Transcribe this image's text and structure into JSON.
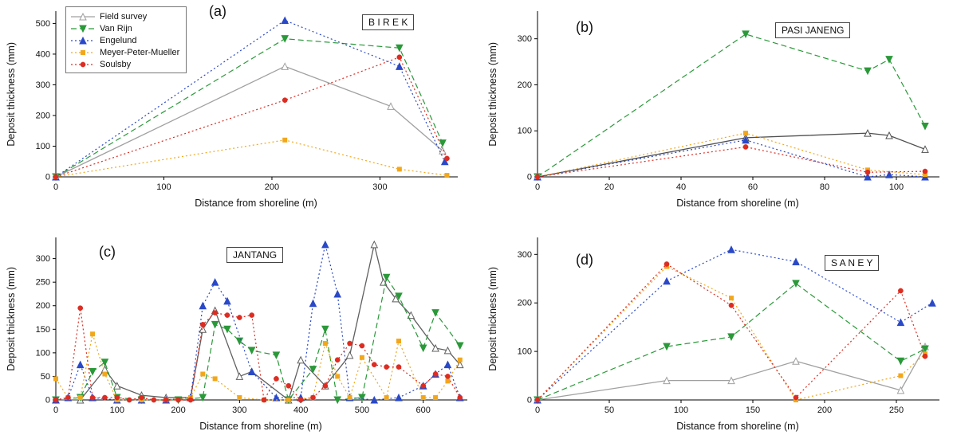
{
  "figure": {
    "xlabel": "Distance from shoreline (m)",
    "ylabel": "Deposit thickness (mm)"
  },
  "series_styles": [
    {
      "name": "Field survey",
      "color": "#a0a0a0",
      "line": "solid",
      "marker": "triangle-open"
    },
    {
      "name": "Van Rijn",
      "color": "#2a9939",
      "line": "dashed",
      "marker": "triangle-down"
    },
    {
      "name": "Engelund",
      "color": "#2a49c8",
      "line": "dotted",
      "marker": "triangle-up"
    },
    {
      "name": "Meyer-Peter-Mueller",
      "color": "#f2a71b",
      "line": "dotted",
      "marker": "square"
    },
    {
      "name": "Soulsby",
      "color": "#dd2c21",
      "line": "dotted",
      "marker": "circle"
    }
  ],
  "legend": {
    "panel": "a",
    "position": "top-left",
    "items": [
      "Field survey",
      "Van Rijn",
      "Engelund",
      "Meyer-Peter-Mueller",
      "Soulsby"
    ]
  },
  "chart_data": [
    {
      "id": "a",
      "type": "line",
      "label": "(a)",
      "title": "B I R E K",
      "xlabel": "Distance from shoreline (m)",
      "ylabel": "Deposit thickness (mm)",
      "xlim": [
        0,
        372
      ],
      "ylim": [
        0,
        540
      ],
      "xticks": [
        0,
        100,
        200,
        300
      ],
      "yticks": [
        0,
        100,
        200,
        300,
        400,
        500
      ],
      "grid": false,
      "series": [
        {
          "name": "Field survey",
          "x": [
            0,
            212,
            310,
            358
          ],
          "y": [
            0,
            360,
            230,
            85
          ]
        },
        {
          "name": "Van Rijn",
          "x": [
            0,
            212,
            318,
            358
          ],
          "y": [
            0,
            450,
            420,
            110
          ]
        },
        {
          "name": "Engelund",
          "x": [
            0,
            212,
            318,
            360
          ],
          "y": [
            0,
            510,
            360,
            50
          ]
        },
        {
          "name": "Meyer-Peter-Mueller",
          "x": [
            0,
            212,
            318,
            362
          ],
          "y": [
            0,
            120,
            25,
            5
          ]
        },
        {
          "name": "Soulsby",
          "x": [
            0,
            212,
            318,
            362
          ],
          "y": [
            0,
            250,
            390,
            60
          ]
        }
      ]
    },
    {
      "id": "b",
      "type": "line",
      "label": "(b)",
      "title": "PASI JANENG",
      "xlabel": "Distance from shoreline (m)",
      "ylabel": "Deposit thickness (mm)",
      "xlim": [
        0,
        112
      ],
      "ylim": [
        0,
        360
      ],
      "xticks": [
        0,
        20,
        40,
        60,
        80,
        100
      ],
      "yticks": [
        0,
        100,
        200,
        300
      ],
      "grid": false,
      "series": [
        {
          "name": "Field survey",
          "color": "#4f4f4f",
          "x": [
            0,
            58,
            92,
            98,
            108
          ],
          "y": [
            0,
            85,
            95,
            90,
            60
          ]
        },
        {
          "name": "Van Rijn",
          "x": [
            0,
            58,
            92,
            98,
            108
          ],
          "y": [
            0,
            310,
            230,
            255,
            110
          ]
        },
        {
          "name": "Engelund",
          "x": [
            0,
            58,
            92,
            98,
            108
          ],
          "y": [
            0,
            80,
            0,
            5,
            0
          ]
        },
        {
          "name": "Meyer-Peter-Mueller",
          "x": [
            0,
            58,
            92,
            108
          ],
          "y": [
            0,
            95,
            15,
            5
          ]
        },
        {
          "name": "Soulsby",
          "x": [
            0,
            58,
            92,
            108
          ],
          "y": [
            0,
            65,
            10,
            12
          ]
        }
      ]
    },
    {
      "id": "c",
      "type": "line",
      "label": "(c)",
      "title": "JANTANG",
      "xlabel": "Distance from shoreline (m)",
      "ylabel": "Deposit thickness (mm)",
      "xlim": [
        0,
        672
      ],
      "ylim": [
        0,
        345
      ],
      "xticks": [
        0,
        100,
        200,
        300,
        400,
        500,
        600
      ],
      "yticks": [
        0,
        50,
        100,
        150,
        200,
        250,
        300
      ],
      "grid": false,
      "series": [
        {
          "name": "Field survey",
          "color": "#5f5f5f",
          "x": [
            0,
            40,
            80,
            100,
            140,
            180,
            220,
            240,
            260,
            300,
            320,
            380,
            400,
            440,
            480,
            520,
            535,
            555,
            580,
            620,
            640,
            660
          ],
          "y": [
            0,
            0,
            65,
            30,
            10,
            5,
            5,
            150,
            190,
            50,
            60,
            0,
            85,
            30,
            95,
            330,
            250,
            215,
            180,
            110,
            105,
            75
          ]
        },
        {
          "name": "Van Rijn",
          "x": [
            0,
            40,
            60,
            80,
            100,
            140,
            200,
            240,
            260,
            280,
            300,
            320,
            360,
            380,
            420,
            440,
            460,
            500,
            540,
            560,
            600,
            620,
            660
          ],
          "y": [
            0,
            5,
            60,
            80,
            5,
            0,
            0,
            5,
            160,
            150,
            125,
            105,
            95,
            0,
            65,
            150,
            0,
            5,
            260,
            220,
            110,
            185,
            115
          ]
        },
        {
          "name": "Engelund",
          "x": [
            0,
            20,
            40,
            60,
            100,
            140,
            180,
            220,
            240,
            260,
            280,
            320,
            360,
            400,
            420,
            440,
            460,
            480,
            520,
            560,
            600,
            620,
            640,
            660
          ],
          "y": [
            0,
            5,
            75,
            5,
            0,
            0,
            0,
            5,
            200,
            250,
            210,
            60,
            5,
            5,
            205,
            330,
            225,
            5,
            0,
            5,
            30,
            55,
            75,
            5
          ]
        },
        {
          "name": "Meyer-Peter-Mueller",
          "x": [
            0,
            20,
            40,
            60,
            80,
            100,
            140,
            180,
            220,
            240,
            260,
            300,
            340,
            380,
            420,
            440,
            460,
            480,
            500,
            540,
            560,
            600,
            620,
            640,
            660
          ],
          "y": [
            45,
            5,
            5,
            140,
            55,
            0,
            0,
            0,
            5,
            55,
            45,
            5,
            0,
            0,
            5,
            120,
            50,
            5,
            90,
            5,
            125,
            5,
            5,
            40,
            85
          ]
        },
        {
          "name": "Soulsby",
          "x": [
            0,
            20,
            40,
            60,
            80,
            100,
            120,
            140,
            160,
            180,
            200,
            220,
            240,
            260,
            280,
            300,
            320,
            340,
            360,
            380,
            400,
            420,
            440,
            460,
            480,
            500,
            520,
            540,
            560,
            600,
            620,
            640,
            660
          ],
          "y": [
            0,
            5,
            195,
            5,
            5,
            5,
            0,
            5,
            0,
            0,
            0,
            0,
            160,
            185,
            180,
            175,
            180,
            0,
            45,
            30,
            0,
            5,
            30,
            85,
            120,
            115,
            75,
            70,
            70,
            30,
            55,
            50,
            5
          ]
        }
      ]
    },
    {
      "id": "d",
      "type": "line",
      "label": "(d)",
      "title": "S A N E Y",
      "xlabel": "Distance from shoreline (m)",
      "ylabel": "Deposit thickness (mm)",
      "xlim": [
        0,
        280
      ],
      "ylim": [
        0,
        335
      ],
      "xticks": [
        0,
        50,
        100,
        150,
        200,
        250
      ],
      "yticks": [
        0,
        100,
        200,
        300
      ],
      "grid": false,
      "series": [
        {
          "name": "Field survey",
          "x": [
            0,
            90,
            135,
            180,
            253,
            270
          ],
          "y": [
            0,
            40,
            40,
            80,
            20,
            110
          ]
        },
        {
          "name": "Van Rijn",
          "x": [
            0,
            90,
            135,
            180,
            253,
            270
          ],
          "y": [
            0,
            110,
            130,
            240,
            80,
            105
          ]
        },
        {
          "name": "Engelund",
          "x": [
            0,
            90,
            135,
            180,
            253,
            275
          ],
          "y": [
            0,
            245,
            310,
            285,
            160,
            200
          ]
        },
        {
          "name": "Meyer-Peter-Mueller",
          "x": [
            0,
            90,
            135,
            180,
            253,
            270
          ],
          "y": [
            0,
            275,
            210,
            0,
            50,
            95
          ]
        },
        {
          "name": "Soulsby",
          "x": [
            0,
            90,
            135,
            180,
            253,
            270
          ],
          "y": [
            0,
            280,
            195,
            5,
            225,
            90
          ]
        }
      ]
    }
  ]
}
